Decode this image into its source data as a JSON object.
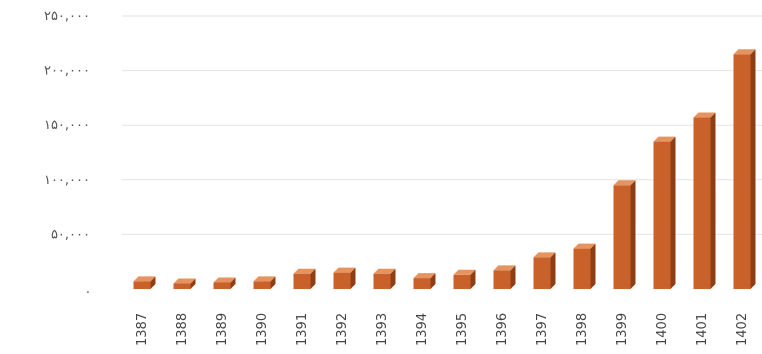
{
  "chart_data": {
    "type": "bar",
    "title": "",
    "xlabel": "",
    "ylabel": "",
    "grid": true,
    "legend": "none",
    "bar_color": "#c8622a",
    "bar_side_color": "#8f3e14",
    "bar_top_color": "#e6935f",
    "ylim": [
      0,
      250000
    ],
    "y_ticks": [
      {
        "value": 0,
        "label": "."
      },
      {
        "value": 50000,
        "label": "۵۰,۰۰۰"
      },
      {
        "value": 100000,
        "label": "۱۰۰,۰۰۰"
      },
      {
        "value": 150000,
        "label": "۱۵۰,۰۰۰"
      },
      {
        "value": 200000,
        "label": "۲۰۰,۰۰۰"
      },
      {
        "value": 250000,
        "label": "۲۵۰,۰۰۰"
      }
    ],
    "categories": [
      "1387",
      "1388",
      "1389",
      "1390",
      "1391",
      "1392",
      "1393",
      "1394",
      "1395",
      "1396",
      "1397",
      "1398",
      "1399",
      "1400",
      "1401",
      "1402"
    ],
    "values": [
      7000,
      5000,
      6000,
      7000,
      14000,
      15000,
      14000,
      10000,
      13000,
      17000,
      29000,
      37000,
      95000,
      135000,
      157000,
      215000
    ]
  }
}
